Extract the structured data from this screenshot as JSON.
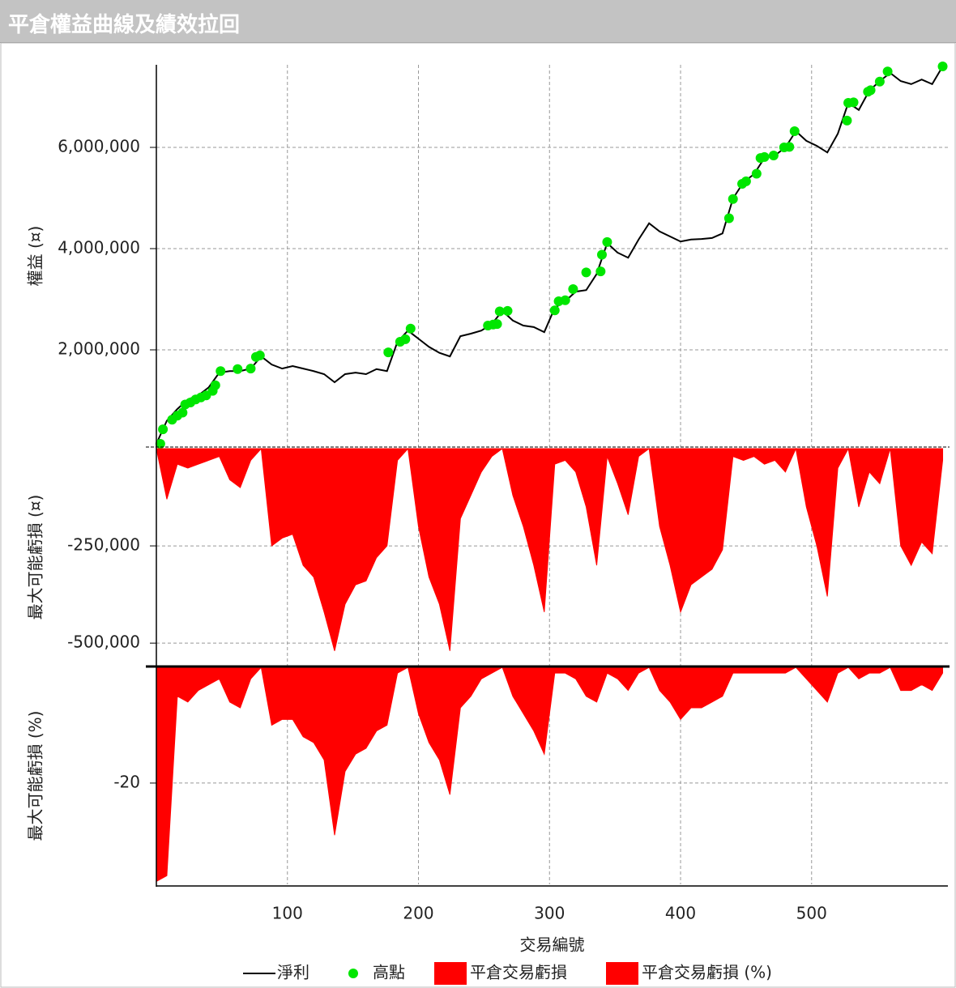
{
  "title": "平倉權益曲線及績效拉回",
  "chart_data": [
    {
      "type": "line",
      "ylabel": "權益 (¤)",
      "xlim": [
        0,
        604
      ],
      "xticks": [
        100,
        200,
        300,
        400,
        500
      ],
      "ylim": [
        80000,
        7632000
      ],
      "yticks": [
        {
          "value": 2000000,
          "label": "2,000,000"
        },
        {
          "value": 4000000,
          "label": "4,000,000"
        },
        {
          "value": 6000000,
          "label": "6,000,000"
        }
      ],
      "grid": true,
      "x": [
        0,
        8,
        16,
        24,
        32,
        40,
        48,
        56,
        64,
        72,
        80,
        88,
        96,
        104,
        112,
        120,
        128,
        136,
        144,
        152,
        160,
        168,
        176,
        184,
        192,
        200,
        208,
        216,
        224,
        232,
        240,
        248,
        256,
        264,
        272,
        280,
        288,
        296,
        304,
        312,
        320,
        328,
        336,
        344,
        352,
        360,
        368,
        376,
        384,
        392,
        400,
        408,
        416,
        424,
        432,
        440,
        448,
        456,
        464,
        472,
        480,
        488,
        496,
        504,
        512,
        520,
        528,
        536,
        544,
        552,
        560,
        568,
        576,
        584,
        592,
        600
      ],
      "series": [
        {
          "name": "淨利",
          "type": "line",
          "color": "#000000",
          "values": [
            144000,
            600000,
            830000,
            1020000,
            1100000,
            1260000,
            1550000,
            1580000,
            1580000,
            1630000,
            1870000,
            1710000,
            1630000,
            1680000,
            1630000,
            1580000,
            1520000,
            1360000,
            1520000,
            1550000,
            1520000,
            1620000,
            1580000,
            2160000,
            2380000,
            2220000,
            2060000,
            1940000,
            1870000,
            2270000,
            2320000,
            2380000,
            2510000,
            2770000,
            2580000,
            2480000,
            2450000,
            2350000,
            2830000,
            2960000,
            3150000,
            3180000,
            3500000,
            4110000,
            3920000,
            3820000,
            4180000,
            4500000,
            4340000,
            4240000,
            4140000,
            4180000,
            4190000,
            4210000,
            4300000,
            4990000,
            5310000,
            5470000,
            5790000,
            5840000,
            6000000,
            6320000,
            6130000,
            6030000,
            5900000,
            6270000,
            6880000,
            6740000,
            7120000,
            7310000,
            7470000,
            7310000,
            7250000,
            7340000,
            7250000,
            7600000
          ]
        },
        {
          "name": "高點",
          "type": "scatter",
          "color": "#00e600",
          "x": [
            3,
            5,
            12,
            16,
            20,
            22,
            26,
            30,
            34,
            38,
            43,
            45,
            49,
            62,
            72,
            76,
            79,
            177,
            186,
            190,
            194,
            253,
            257,
            260,
            262,
            268,
            304,
            307,
            312,
            318,
            328,
            339,
            340,
            344,
            437,
            440,
            447,
            450,
            458,
            461,
            464,
            471,
            479,
            483,
            487,
            527,
            528,
            532,
            543,
            545,
            552,
            558,
            600
          ],
          "values": [
            144000,
            430000,
            620000,
            700000,
            760000,
            920000,
            960000,
            1020000,
            1060000,
            1100000,
            1190000,
            1300000,
            1580000,
            1620000,
            1630000,
            1860000,
            1890000,
            1950000,
            2160000,
            2210000,
            2420000,
            2480000,
            2500000,
            2510000,
            2760000,
            2770000,
            2780000,
            2960000,
            2980000,
            3200000,
            3530000,
            3550000,
            3880000,
            4130000,
            4600000,
            4980000,
            5280000,
            5330000,
            5480000,
            5790000,
            5810000,
            5840000,
            6000000,
            6010000,
            6320000,
            6530000,
            6880000,
            6890000,
            7100000,
            7130000,
            7300000,
            7500000,
            7600000
          ]
        }
      ]
    },
    {
      "type": "area",
      "ylabel": "最大可能虧損 (¤)",
      "xlim": [
        0,
        604
      ],
      "xticks": [
        100,
        200,
        300,
        400,
        500
      ],
      "ylim": [
        -558000,
        0
      ],
      "yticks": [
        {
          "value": -500000,
          "label": "-500,000"
        },
        {
          "value": -250000,
          "label": "-250,000"
        }
      ],
      "grid": true,
      "x": [
        0,
        8,
        16,
        24,
        32,
        40,
        48,
        56,
        64,
        72,
        80,
        88,
        96,
        104,
        112,
        120,
        128,
        136,
        144,
        152,
        160,
        168,
        176,
        184,
        192,
        200,
        208,
        216,
        224,
        232,
        240,
        248,
        256,
        264,
        272,
        280,
        288,
        296,
        304,
        312,
        320,
        328,
        336,
        344,
        352,
        360,
        368,
        376,
        384,
        392,
        400,
        408,
        416,
        424,
        432,
        440,
        448,
        456,
        464,
        472,
        480,
        488,
        496,
        504,
        512,
        520,
        528,
        536,
        544,
        552,
        560,
        568,
        576,
        584,
        592,
        600
      ],
      "series": [
        {
          "name": "平倉交易虧損",
          "color": "#ff0000",
          "values": [
            0,
            -130000,
            -40000,
            -50000,
            -40000,
            -30000,
            -20000,
            -80000,
            -100000,
            -30000,
            0,
            -250000,
            -230000,
            -220000,
            -300000,
            -330000,
            -420000,
            -520000,
            -400000,
            -350000,
            -340000,
            -280000,
            -250000,
            -30000,
            0,
            -200000,
            -330000,
            -400000,
            -520000,
            -180000,
            -120000,
            -60000,
            -20000,
            0,
            -120000,
            -200000,
            -300000,
            -420000,
            -40000,
            -30000,
            -60000,
            -150000,
            -300000,
            -20000,
            -90000,
            -170000,
            -20000,
            0,
            -200000,
            -300000,
            -420000,
            -350000,
            -330000,
            -310000,
            -260000,
            -20000,
            -30000,
            -20000,
            -40000,
            -30000,
            -60000,
            0,
            -150000,
            -250000,
            -380000,
            -50000,
            0,
            -150000,
            -60000,
            -90000,
            0,
            -250000,
            -300000,
            -240000,
            -270000,
            -30000
          ]
        }
      ]
    },
    {
      "type": "area",
      "ylabel": "最大可能虧損 (%)",
      "xlabel": "交易編號",
      "xlim": [
        0,
        604
      ],
      "xticks": [
        100,
        200,
        300,
        400,
        500
      ],
      "ylim": [
        -37.5,
        0
      ],
      "yticks": [
        -20
      ],
      "grid": true,
      "x": [
        0,
        8,
        16,
        24,
        32,
        40,
        48,
        56,
        64,
        72,
        80,
        88,
        96,
        104,
        112,
        120,
        128,
        136,
        144,
        152,
        160,
        168,
        176,
        184,
        192,
        200,
        208,
        216,
        224,
        232,
        240,
        248,
        256,
        264,
        272,
        280,
        288,
        296,
        304,
        312,
        320,
        328,
        336,
        344,
        352,
        360,
        368,
        376,
        384,
        392,
        400,
        408,
        416,
        424,
        432,
        440,
        448,
        456,
        464,
        472,
        480,
        488,
        496,
        504,
        512,
        520,
        528,
        536,
        544,
        552,
        560,
        568,
        576,
        584,
        592,
        600
      ],
      "series": [
        {
          "name": "平倉交易虧損 (%)",
          "color": "#ff0000",
          "values": [
            -37,
            -36,
            -5,
            -6,
            -4,
            -3,
            -2,
            -6,
            -7,
            -2,
            0,
            -10,
            -9,
            -9,
            -12,
            -13,
            -16,
            -29,
            -18,
            -15,
            -14,
            -11,
            -10,
            -1,
            0,
            -8,
            -13,
            -16,
            -22,
            -7,
            -5,
            -2,
            -1,
            0,
            -5,
            -8,
            -11,
            -15,
            -1,
            -1,
            -2,
            -5,
            -6,
            -1,
            -2,
            -4,
            -1,
            0,
            -4,
            -6,
            -9,
            -7,
            -7,
            -6,
            -5,
            -1,
            -1,
            -1,
            -1,
            -1,
            -1,
            0,
            -2,
            -4,
            -6,
            -1,
            0,
            -2,
            -1,
            -1,
            0,
            -4,
            -4,
            -3,
            -4,
            -1
          ]
        }
      ]
    }
  ]
}
